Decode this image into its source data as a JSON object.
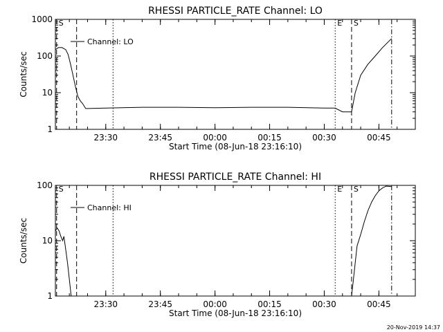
{
  "footer_timestamp": "20-Nov-2019 14:37",
  "chart_data": [
    {
      "type": "line",
      "title": "RHESSI PARTICLE_RATE Channel: LO",
      "xlabel": "Start Time (08-Jun-18 23:16:10)",
      "ylabel": "Counts/sec",
      "yscale": "log",
      "ylim": [
        1,
        1000
      ],
      "yticks": [
        "1",
        "10",
        "100",
        "1000"
      ],
      "xlim": [
        "2018-06-08 23:16:10",
        "2018-06-09 00:55:00"
      ],
      "xticks": [
        "23:30",
        "23:45",
        "00:00",
        "00:15",
        "00:30",
        "00:45"
      ],
      "legend": "Channel: LO",
      "legend_position": "top-left",
      "markers": [
        {
          "label": "S",
          "time": "23:16:30",
          "style": "dashed"
        },
        {
          "label": "",
          "time": "23:22:00",
          "style": "dashed"
        },
        {
          "label": "",
          "time": "23:32:00",
          "style": "dotted"
        },
        {
          "label": "E",
          "time": "00:33:00",
          "style": "dotted"
        },
        {
          "label": "S",
          "time": "00:37:30",
          "style": "dashed"
        },
        {
          "label": "",
          "time": "00:48:30",
          "style": "dashdot"
        }
      ],
      "series": [
        {
          "x": [
            "23:16:10",
            "23:17:00",
            "23:18:00",
            "23:19:00",
            "23:19:40",
            "23:20:20",
            "23:21:00",
            "23:21:40",
            "23:22:20",
            "23:23:00",
            "23:23:40",
            "23:24:30",
            "23:30:00",
            "23:40:00",
            "23:50:00",
            "00:00:00",
            "00:10:00",
            "00:20:00",
            "00:30:00",
            "00:33:00",
            "00:35:00",
            "00:36:30",
            "00:37:30",
            "00:38:30",
            "00:40:00",
            "00:42:00",
            "00:44:00",
            "00:46:00",
            "00:48:30"
          ],
          "y": [
            150,
            170,
            170,
            150,
            110,
            60,
            30,
            15,
            8,
            6,
            5,
            3.7,
            3.8,
            4,
            4,
            3.9,
            4,
            4,
            3.8,
            3.8,
            3,
            3,
            3,
            10,
            30,
            60,
            100,
            170,
            300
          ]
        }
      ]
    },
    {
      "type": "line",
      "title": "RHESSI PARTICLE_RATE Channel: HI",
      "xlabel": "Start Time (08-Jun-18 23:16:10)",
      "ylabel": "Counts/sec",
      "yscale": "log",
      "ylim": [
        1,
        100
      ],
      "yticks": [
        "1",
        "10",
        "100"
      ],
      "xlim": [
        "2018-06-08 23:16:10",
        "2018-06-09 00:55:00"
      ],
      "xticks": [
        "23:30",
        "23:45",
        "00:00",
        "00:15",
        "00:30",
        "00:45"
      ],
      "legend": "Channel: HI",
      "legend_position": "top-left",
      "markers": [
        {
          "label": "S",
          "time": "23:16:30",
          "style": "dashed"
        },
        {
          "label": "",
          "time": "23:22:00",
          "style": "dashed"
        },
        {
          "label": "",
          "time": "23:32:00",
          "style": "dotted"
        },
        {
          "label": "E",
          "time": "00:33:00",
          "style": "dotted"
        },
        {
          "label": "S",
          "time": "00:37:30",
          "style": "dashed"
        },
        {
          "label": "",
          "time": "00:48:30",
          "style": "dashdot"
        }
      ],
      "series": [
        {
          "x": [
            "23:16:10",
            "23:16:40",
            "23:17:10",
            "23:17:40",
            "23:18:10",
            "23:18:30",
            "23:19:00",
            "23:19:30",
            "23:20:00",
            "23:20:30",
            "00:37:30",
            "00:38:00",
            "00:38:30",
            "00:39:00",
            "00:40:00",
            "00:41:00",
            "00:42:00",
            "00:43:00",
            "00:44:00",
            "00:45:00",
            "00:46:00",
            "00:47:00",
            "00:48:30"
          ],
          "y": [
            15,
            17,
            15,
            12,
            10,
            12,
            7,
            4,
            2,
            1,
            1,
            2,
            4,
            8,
            13,
            22,
            35,
            50,
            65,
            80,
            90,
            97,
            95
          ]
        }
      ]
    }
  ]
}
